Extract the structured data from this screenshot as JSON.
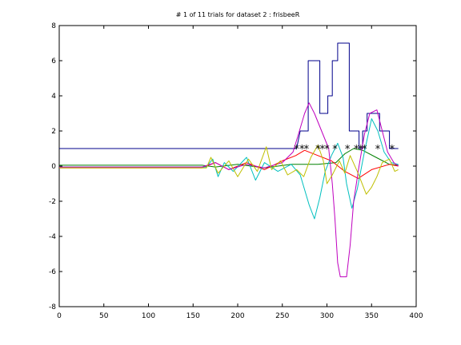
{
  "chart_data": {
    "type": "line",
    "title": "# 1 of 11 trials for dataset 2 : frisbeeR",
    "xlabel": "",
    "ylabel": "",
    "xlim": [
      0,
      400
    ],
    "ylim": [
      -8,
      8
    ],
    "x_ticks": [
      "0",
      "50",
      "100",
      "150",
      "200",
      "250",
      "300",
      "350",
      "400"
    ],
    "y_ticks": [
      "-8",
      "-6",
      "-4",
      "-2",
      "0",
      "2",
      "4",
      "6",
      "8"
    ],
    "grid": false,
    "legend": "none",
    "series": [
      {
        "color": "#00008b",
        "points": [
          [
            0,
            1
          ],
          [
            266,
            1
          ],
          [
            270,
            2
          ],
          [
            279,
            2
          ],
          [
            279,
            6
          ],
          [
            292,
            6
          ],
          [
            292,
            3
          ],
          [
            297,
            3
          ],
          [
            301,
            3
          ],
          [
            301,
            4
          ],
          [
            306,
            4
          ],
          [
            306,
            6
          ],
          [
            312,
            6
          ],
          [
            312,
            7
          ],
          [
            325,
            7
          ],
          [
            325,
            2
          ],
          [
            336,
            2
          ],
          [
            336,
            1
          ],
          [
            340,
            1
          ],
          [
            340,
            2
          ],
          [
            345,
            2
          ],
          [
            345,
            3
          ],
          [
            359,
            3
          ],
          [
            359,
            2
          ],
          [
            370,
            2
          ],
          [
            370,
            1
          ],
          [
            380,
            1
          ]
        ]
      },
      {
        "color": "#008000",
        "points": [
          [
            0,
            0.05
          ],
          [
            160,
            0.05
          ],
          [
            175,
            -0.05
          ],
          [
            200,
            0.1
          ],
          [
            230,
            -0.1
          ],
          [
            260,
            0.1
          ],
          [
            290,
            0.1
          ],
          [
            310,
            0.2
          ],
          [
            320,
            0.7
          ],
          [
            330,
            1.0
          ],
          [
            340,
            0.9
          ],
          [
            355,
            0.5
          ],
          [
            370,
            0.1
          ],
          [
            380,
            0.05
          ]
        ]
      },
      {
        "color": "#ff0000",
        "points": [
          [
            0,
            -0.1
          ],
          [
            160,
            -0.1
          ],
          [
            175,
            0.2
          ],
          [
            190,
            -0.2
          ],
          [
            210,
            0.2
          ],
          [
            230,
            -0.2
          ],
          [
            250,
            0.3
          ],
          [
            265,
            0.6
          ],
          [
            275,
            0.9
          ],
          [
            290,
            0.6
          ],
          [
            305,
            0.3
          ],
          [
            320,
            -0.3
          ],
          [
            335,
            -0.7
          ],
          [
            350,
            -0.2
          ],
          [
            370,
            0.1
          ],
          [
            380,
            0
          ]
        ]
      },
      {
        "color": "#00bfbf",
        "points": [
          [
            0,
            -0.05
          ],
          [
            165,
            -0.05
          ],
          [
            172,
            0.4
          ],
          [
            178,
            -0.6
          ],
          [
            185,
            0.2
          ],
          [
            195,
            -0.3
          ],
          [
            210,
            0.5
          ],
          [
            220,
            -0.8
          ],
          [
            230,
            0.2
          ],
          [
            245,
            -0.3
          ],
          [
            260,
            0.1
          ],
          [
            270,
            -0.5
          ],
          [
            280,
            -2.2
          ],
          [
            286,
            -3.0
          ],
          [
            292,
            -1.8
          ],
          [
            298,
            -0.3
          ],
          [
            305,
            0.6
          ],
          [
            312,
            1.3
          ],
          [
            318,
            0.5
          ],
          [
            322,
            -1.0
          ],
          [
            328,
            -2.4
          ],
          [
            334,
            -1.3
          ],
          [
            342,
            0.8
          ],
          [
            350,
            2.7
          ],
          [
            357,
            2.0
          ],
          [
            364,
            0.8
          ],
          [
            372,
            0.2
          ],
          [
            380,
            0.1
          ]
        ]
      },
      {
        "color": "#bf00bf",
        "points": [
          [
            0,
            -0.05
          ],
          [
            160,
            -0.05
          ],
          [
            175,
            0.2
          ],
          [
            190,
            -0.2
          ],
          [
            210,
            0.1
          ],
          [
            230,
            -0.1
          ],
          [
            250,
            0.2
          ],
          [
            262,
            0.8
          ],
          [
            268,
            1.8
          ],
          [
            275,
            3.0
          ],
          [
            280,
            3.6
          ],
          [
            286,
            3.0
          ],
          [
            294,
            2.0
          ],
          [
            302,
            1.0
          ],
          [
            306,
            -1.0
          ],
          [
            309,
            -3.0
          ],
          [
            312,
            -5.5
          ],
          [
            315,
            -6.3
          ],
          [
            322,
            -6.3
          ],
          [
            326,
            -4.5
          ],
          [
            330,
            -2.0
          ],
          [
            336,
            0
          ],
          [
            342,
            1.8
          ],
          [
            348,
            3.0
          ],
          [
            356,
            3.2
          ],
          [
            362,
            2.0
          ],
          [
            368,
            0.8
          ],
          [
            375,
            0.2
          ],
          [
            380,
            0
          ]
        ]
      },
      {
        "color": "#bfbf00",
        "points": [
          [
            0,
            -0.1
          ],
          [
            165,
            -0.1
          ],
          [
            170,
            0.5
          ],
          [
            178,
            -0.4
          ],
          [
            190,
            0.3
          ],
          [
            200,
            -0.6
          ],
          [
            212,
            0.4
          ],
          [
            222,
            -0.3
          ],
          [
            232,
            1.1
          ],
          [
            238,
            -0.2
          ],
          [
            248,
            0.3
          ],
          [
            256,
            -0.5
          ],
          [
            266,
            -0.2
          ],
          [
            274,
            -0.6
          ],
          [
            282,
            0.5
          ],
          [
            290,
            1.2
          ],
          [
            296,
            0.3
          ],
          [
            300,
            -1.0
          ],
          [
            306,
            -0.5
          ],
          [
            314,
            0.3
          ],
          [
            320,
            -0.4
          ],
          [
            326,
            0.6
          ],
          [
            334,
            -0.3
          ],
          [
            344,
            -1.6
          ],
          [
            350,
            -1.2
          ],
          [
            356,
            -0.6
          ],
          [
            362,
            0.2
          ],
          [
            370,
            0.4
          ],
          [
            376,
            -0.3
          ],
          [
            380,
            -0.2
          ]
        ]
      }
    ],
    "markers": {
      "symbol": "*",
      "color": "#000000",
      "y": 1,
      "x": [
        266,
        272,
        277,
        290,
        295,
        300,
        309,
        323,
        333,
        338,
        342,
        357,
        373
      ]
    }
  }
}
